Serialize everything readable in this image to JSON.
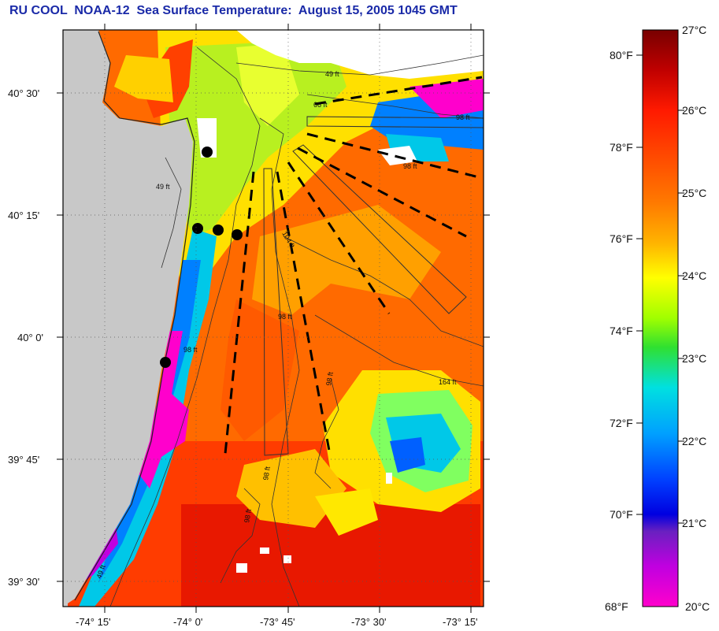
{
  "title": "RU COOL  NOAA-12  Sea Surface Temperature:  August 15, 2005 1045 GMT",
  "map": {
    "lat_labels": [
      "40° 30'",
      "40° 15'",
      "40° 0'",
      "39° 45'",
      "39° 30'"
    ],
    "lon_labels": [
      "-74° 15'",
      "-74° 0'",
      "-73° 45'",
      "-73° 30'",
      "-73° 15'"
    ],
    "contour_labels": [
      "49 ft",
      "66 ft",
      "98 ft",
      "98 ft",
      "104 ft",
      "98 ft",
      "98 ft",
      "98 ft",
      "164 ft",
      "98 ft",
      "49 ft",
      "49 ft",
      "98 ft"
    ],
    "stations_count": 5
  },
  "colorbar": {
    "fahrenheit_labels": [
      "80°F",
      "78°F",
      "76°F",
      "74°F",
      "72°F",
      "70°F",
      "68°F"
    ],
    "celsius_labels": [
      "27°C",
      "26°C",
      "25°C",
      "24°C",
      "23°C",
      "22°C",
      "21°C",
      "20°C"
    ]
  },
  "colors": {
    "title": "#1a2aa8",
    "land": "#c8c8c8",
    "warm": "#d81e05",
    "cold": "#ff00cc"
  }
}
